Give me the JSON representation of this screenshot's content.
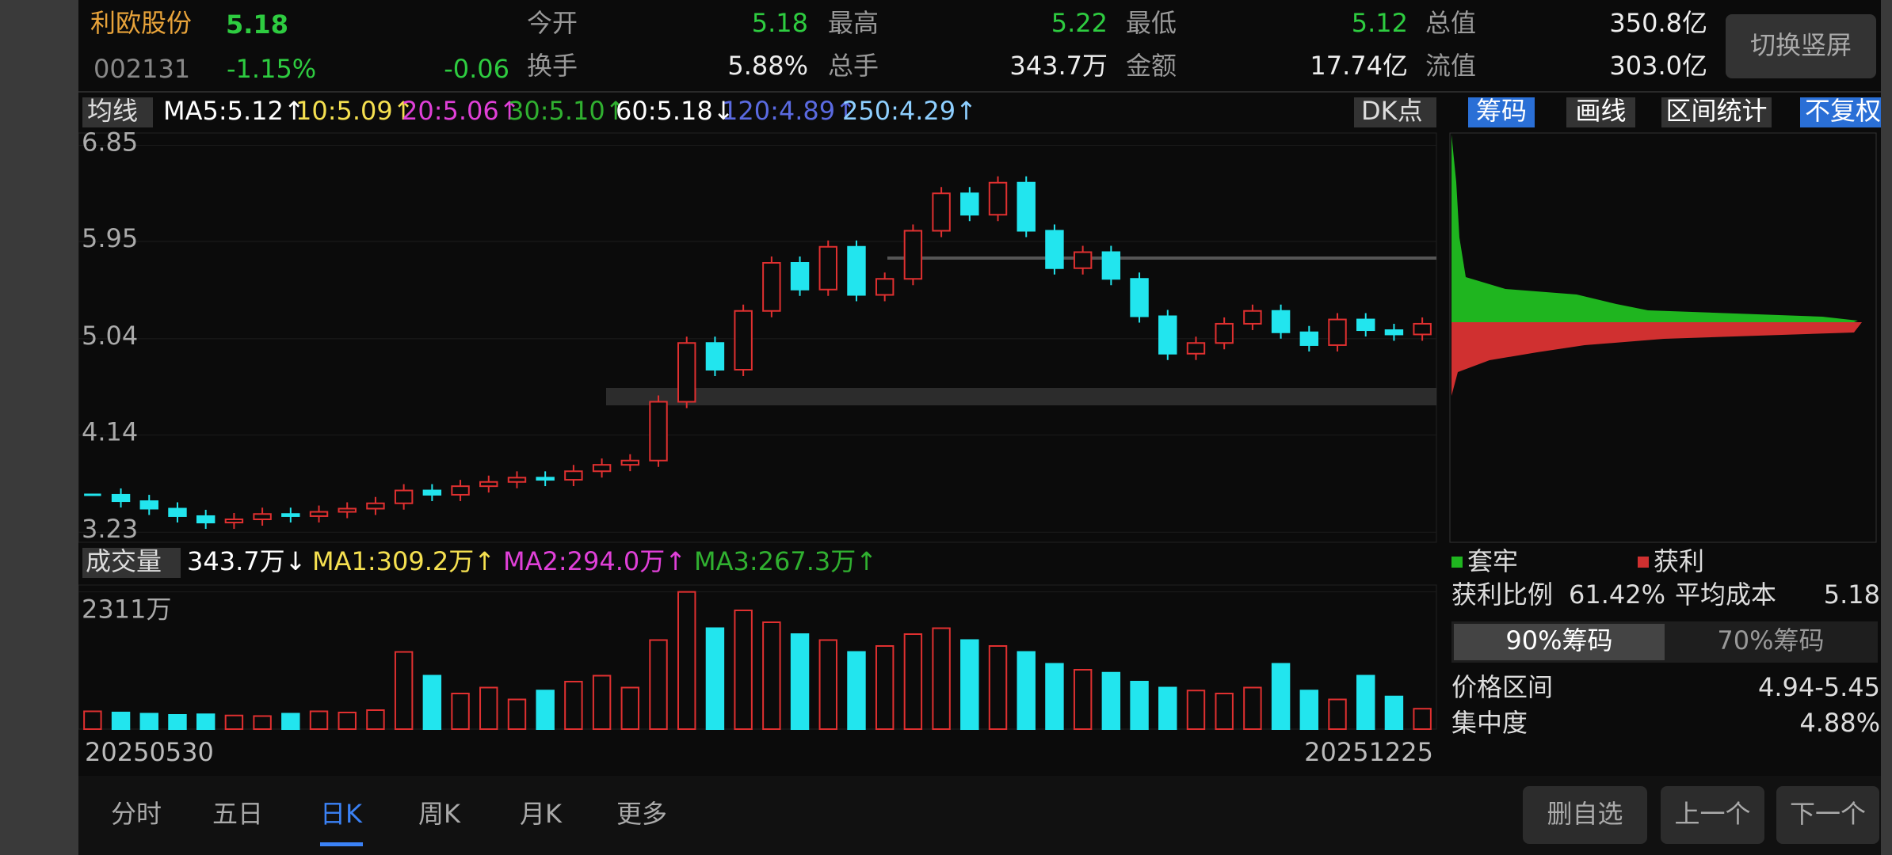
{
  "header": {
    "name": "利欧股份",
    "price": "5.18",
    "code": "002131",
    "change_pct": "-1.15%",
    "change": "-0.06",
    "stats": [
      {
        "label": "今开",
        "value": "5.18"
      },
      {
        "label": "最高",
        "value": "5.22"
      },
      {
        "label": "最低",
        "value": "5.12"
      },
      {
        "label": "总值",
        "value": "350.8亿"
      },
      {
        "label": "换手",
        "value": "5.88%"
      },
      {
        "label": "总手",
        "value": "343.7万"
      },
      {
        "label": "金额",
        "value": "17.74亿"
      },
      {
        "label": "流值",
        "value": "303.0亿"
      }
    ],
    "rotate_button": "切换竖屏"
  },
  "ma_bar": {
    "selector": "均线",
    "items": [
      {
        "text": "MA5:5.12↑",
        "color": "#ffffff"
      },
      {
        "text": "10:5.09↑",
        "color": "#f5e050"
      },
      {
        "text": "20:5.06↑",
        "color": "#e040d8"
      },
      {
        "text": "30:5.10↑",
        "color": "#30b030"
      },
      {
        "text": "60:5.18↓",
        "color": "#ffffff"
      },
      {
        "text": "120:4.89↑",
        "color": "#5a6ae0"
      },
      {
        "text": "250:4.29↑",
        "color": "#8ecfff"
      }
    ],
    "dk": "DK点",
    "tools": [
      "筹码",
      "画线",
      "区间统计",
      "不复权"
    ]
  },
  "price_chart": {
    "ylim": [
      3.15,
      6.95
    ],
    "yticks": [
      6.85,
      5.95,
      5.04,
      4.14,
      3.23
    ],
    "closes": [
      3.58,
      3.52,
      3.45,
      3.38,
      3.32,
      3.35,
      3.4,
      3.38,
      3.42,
      3.45,
      3.5,
      3.62,
      3.58,
      3.66,
      3.7,
      3.74,
      3.72,
      3.8,
      3.86,
      3.9,
      4.45,
      5.0,
      4.75,
      5.3,
      5.75,
      5.5,
      5.9,
      5.45,
      5.6,
      6.05,
      6.4,
      6.2,
      6.5,
      6.05,
      5.7,
      5.85,
      5.6,
      5.25,
      4.9,
      5.0,
      5.18,
      5.3,
      5.1,
      4.98,
      5.22,
      5.12,
      5.08,
      5.18
    ]
  },
  "volume_chart": {
    "selector": "成交量",
    "items": [
      {
        "text": "343.7万↓",
        "color": "#ffffff"
      },
      {
        "text": "MA1:309.2万↑",
        "color": "#f5e050"
      },
      {
        "text": "MA2:294.0万↑",
        "color": "#e040d8"
      },
      {
        "text": "MA3:267.3万↑",
        "color": "#30b030"
      }
    ],
    "ylim": [
      0,
      2400
    ],
    "yticks": [
      {
        "value": 2311,
        "label": "2311万"
      }
    ],
    "volumes": [
      300,
      280,
      260,
      240,
      250,
      230,
      220,
      260,
      300,
      280,
      320,
      1300,
      900,
      600,
      700,
      500,
      650,
      800,
      900,
      700,
      1500,
      2311,
      1700,
      2000,
      1800,
      1600,
      1500,
      1300,
      1400,
      1600,
      1700,
      1500,
      1400,
      1300,
      1100,
      1000,
      950,
      800,
      700,
      650,
      600,
      700,
      1100,
      650,
      500,
      900,
      550,
      343.7
    ]
  },
  "dates": {
    "start": "20250530",
    "end": "20251225"
  },
  "chip_panel": {
    "legend": [
      "套牢",
      "获利"
    ],
    "profit_label": "获利比例",
    "profit_value": "61.42%",
    "avg_label": "平均成本",
    "avg_value": "5.18",
    "toggle": [
      "90%筹码",
      "70%筹码"
    ],
    "range_label": "价格区间",
    "range_value": "4.94-5.45",
    "conc_label": "集中度",
    "conc_value": "4.88%"
  },
  "bottom": {
    "tabs": [
      "分时",
      "五日",
      "日K",
      "周K",
      "月K",
      "更多"
    ],
    "buttons": [
      "删自选",
      "上一个",
      "下一个"
    ]
  }
}
